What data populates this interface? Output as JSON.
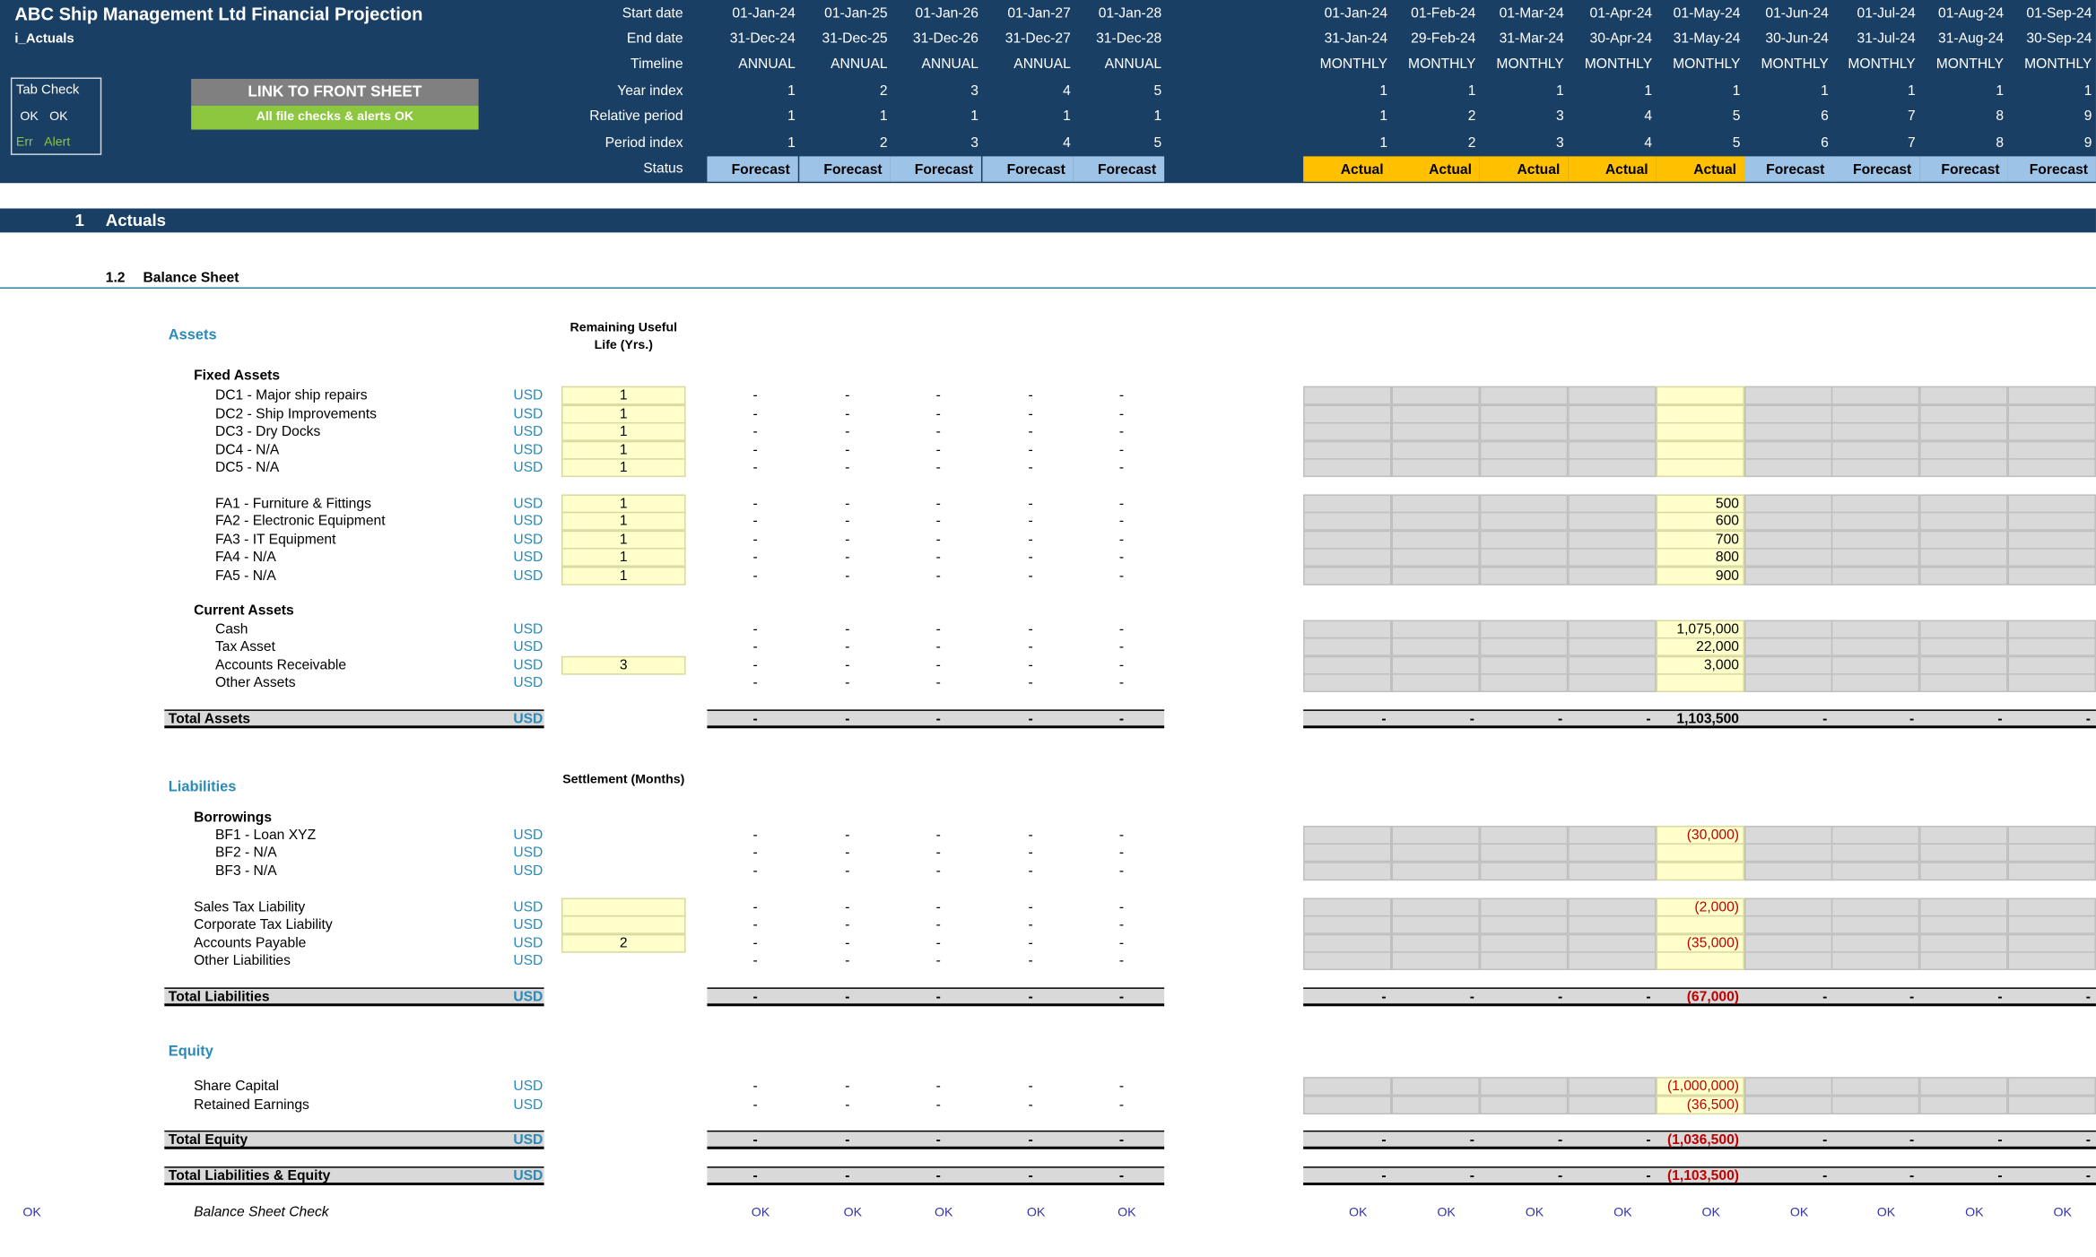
{
  "title": "ABC Ship Management Ltd Financial Projection",
  "sheet_name": "i_Actuals",
  "tab_check": {
    "title": "Tab Check",
    "ok1": "OK",
    "ok2": "OK",
    "err": "Err",
    "alert": "Alert"
  },
  "buttons": {
    "link_front": "LINK TO FRONT SHEET",
    "file_checks": "All file checks & alerts OK"
  },
  "timeline_labels": [
    "Start date",
    "End date",
    "Timeline",
    "Year index",
    "Relative period",
    "Period index",
    "Status"
  ],
  "annual": [
    {
      "start": "01-Jan-24",
      "end": "31-Dec-24",
      "tl": "ANNUAL",
      "yi": "1",
      "rp": "1",
      "pi": "1",
      "status": "Forecast"
    },
    {
      "start": "01-Jan-25",
      "end": "31-Dec-25",
      "tl": "ANNUAL",
      "yi": "2",
      "rp": "1",
      "pi": "2",
      "status": "Forecast"
    },
    {
      "start": "01-Jan-26",
      "end": "31-Dec-26",
      "tl": "ANNUAL",
      "yi": "3",
      "rp": "1",
      "pi": "3",
      "status": "Forecast"
    },
    {
      "start": "01-Jan-27",
      "end": "31-Dec-27",
      "tl": "ANNUAL",
      "yi": "4",
      "rp": "1",
      "pi": "4",
      "status": "Forecast"
    },
    {
      "start": "01-Jan-28",
      "end": "31-Dec-28",
      "tl": "ANNUAL",
      "yi": "5",
      "rp": "1",
      "pi": "5",
      "status": "Forecast"
    }
  ],
  "monthly": [
    {
      "start": "01-Jan-24",
      "end": "31-Jan-24",
      "tl": "MONTHLY",
      "yi": "1",
      "rp": "1",
      "pi": "1",
      "status": "Actual"
    },
    {
      "start": "01-Feb-24",
      "end": "29-Feb-24",
      "tl": "MONTHLY",
      "yi": "1",
      "rp": "2",
      "pi": "2",
      "status": "Actual"
    },
    {
      "start": "01-Mar-24",
      "end": "31-Mar-24",
      "tl": "MONTHLY",
      "yi": "1",
      "rp": "3",
      "pi": "3",
      "status": "Actual"
    },
    {
      "start": "01-Apr-24",
      "end": "30-Apr-24",
      "tl": "MONTHLY",
      "yi": "1",
      "rp": "4",
      "pi": "4",
      "status": "Actual"
    },
    {
      "start": "01-May-24",
      "end": "31-May-24",
      "tl": "MONTHLY",
      "yi": "1",
      "rp": "5",
      "pi": "5",
      "status": "Actual"
    },
    {
      "start": "01-Jun-24",
      "end": "30-Jun-24",
      "tl": "MONTHLY",
      "yi": "1",
      "rp": "6",
      "pi": "6",
      "status": "Forecast"
    },
    {
      "start": "01-Jul-24",
      "end": "31-Jul-24",
      "tl": "MONTHLY",
      "yi": "1",
      "rp": "7",
      "pi": "7",
      "status": "Forecast"
    },
    {
      "start": "01-Aug-24",
      "end": "31-Aug-24",
      "tl": "MONTHLY",
      "yi": "1",
      "rp": "8",
      "pi": "8",
      "status": "Forecast"
    },
    {
      "start": "01-Sep-24",
      "end": "30-Sep-24",
      "tl": "MONTHLY",
      "yi": "1",
      "rp": "9",
      "pi": "9",
      "status": "Forecast"
    }
  ],
  "colors": {
    "header": "#1a3f65",
    "forecast": "#9dc3e6",
    "actual": "#ffc000",
    "input": "#ffffcc",
    "locked": "#d9d9d9",
    "ok_green": "#8dc63f"
  },
  "section": {
    "num": "1",
    "title": "Actuals",
    "sub_num": "1.2",
    "sub_title": "Balance Sheet"
  },
  "groups": {
    "assets": "Assets",
    "fixed_assets": "Fixed Assets",
    "current_assets": "Current Assets",
    "liabilities": "Liabilities",
    "borrowings": "Borrowings",
    "equity": "Equity",
    "rul_header": "Remaining Useful Life (Yrs.)",
    "settle_header": "Settlement (Months)"
  },
  "unit": "USD",
  "dash": "-",
  "rows": {
    "dc1": {
      "label": "DC1 - Major ship repairs",
      "input": "1",
      "may": ""
    },
    "dc2": {
      "label": "DC2 - Ship Improvements",
      "input": "1",
      "may": ""
    },
    "dc3": {
      "label": "DC3 - Dry Docks",
      "input": "1",
      "may": ""
    },
    "dc4": {
      "label": "DC4 - N/A",
      "input": "1",
      "may": ""
    },
    "dc5": {
      "label": "DC5 - N/A",
      "input": "1",
      "may": ""
    },
    "fa1": {
      "label": "FA1 - Furniture & Fittings",
      "input": "1",
      "may": "500"
    },
    "fa2": {
      "label": "FA2 - Electronic Equipment",
      "input": "1",
      "may": "600"
    },
    "fa3": {
      "label": "FA3 - IT Equipment",
      "input": "1",
      "may": "700"
    },
    "fa4": {
      "label": "FA4 - N/A",
      "input": "1",
      "may": "800"
    },
    "fa5": {
      "label": "FA5 - N/A",
      "input": "1",
      "may": "900"
    },
    "cash": {
      "label": "Cash",
      "may": "1,075,000"
    },
    "tax_asset": {
      "label": "Tax Asset",
      "may": "22,000"
    },
    "ar": {
      "label": "Accounts Receivable",
      "input": "3",
      "may": "3,000"
    },
    "other_assets": {
      "label": "Other Assets",
      "may": ""
    },
    "total_assets": {
      "label": "Total Assets",
      "may": "1,103,500"
    },
    "bf1": {
      "label": "BF1 - Loan XYZ",
      "may": "(30,000)"
    },
    "bf2": {
      "label": "BF2 - N/A",
      "may": ""
    },
    "bf3": {
      "label": "BF3 - N/A",
      "may": ""
    },
    "stl": {
      "label": "Sales Tax Liability",
      "input": "",
      "may": "(2,000)"
    },
    "ctl": {
      "label": "Corporate Tax Liability",
      "input": "",
      "may": ""
    },
    "ap": {
      "label": "Accounts Payable",
      "input": "2",
      "may": "(35,000)"
    },
    "ol": {
      "label": "Other Liabilities",
      "may": ""
    },
    "total_liab": {
      "label": "Total Liabilities",
      "may": "(67,000)"
    },
    "share_cap": {
      "label": "Share Capital",
      "may": "(1,000,000)"
    },
    "ret_earn": {
      "label": "Retained Earnings",
      "may": "(36,500)"
    },
    "total_eq": {
      "label": "Total Equity",
      "may": "(1,036,500)"
    },
    "total_le": {
      "label": "Total Liabilities & Equity",
      "may": "(1,103,500)"
    }
  },
  "check": {
    "left": "OK",
    "label": "Balance Sheet Check",
    "ok": "OK"
  }
}
